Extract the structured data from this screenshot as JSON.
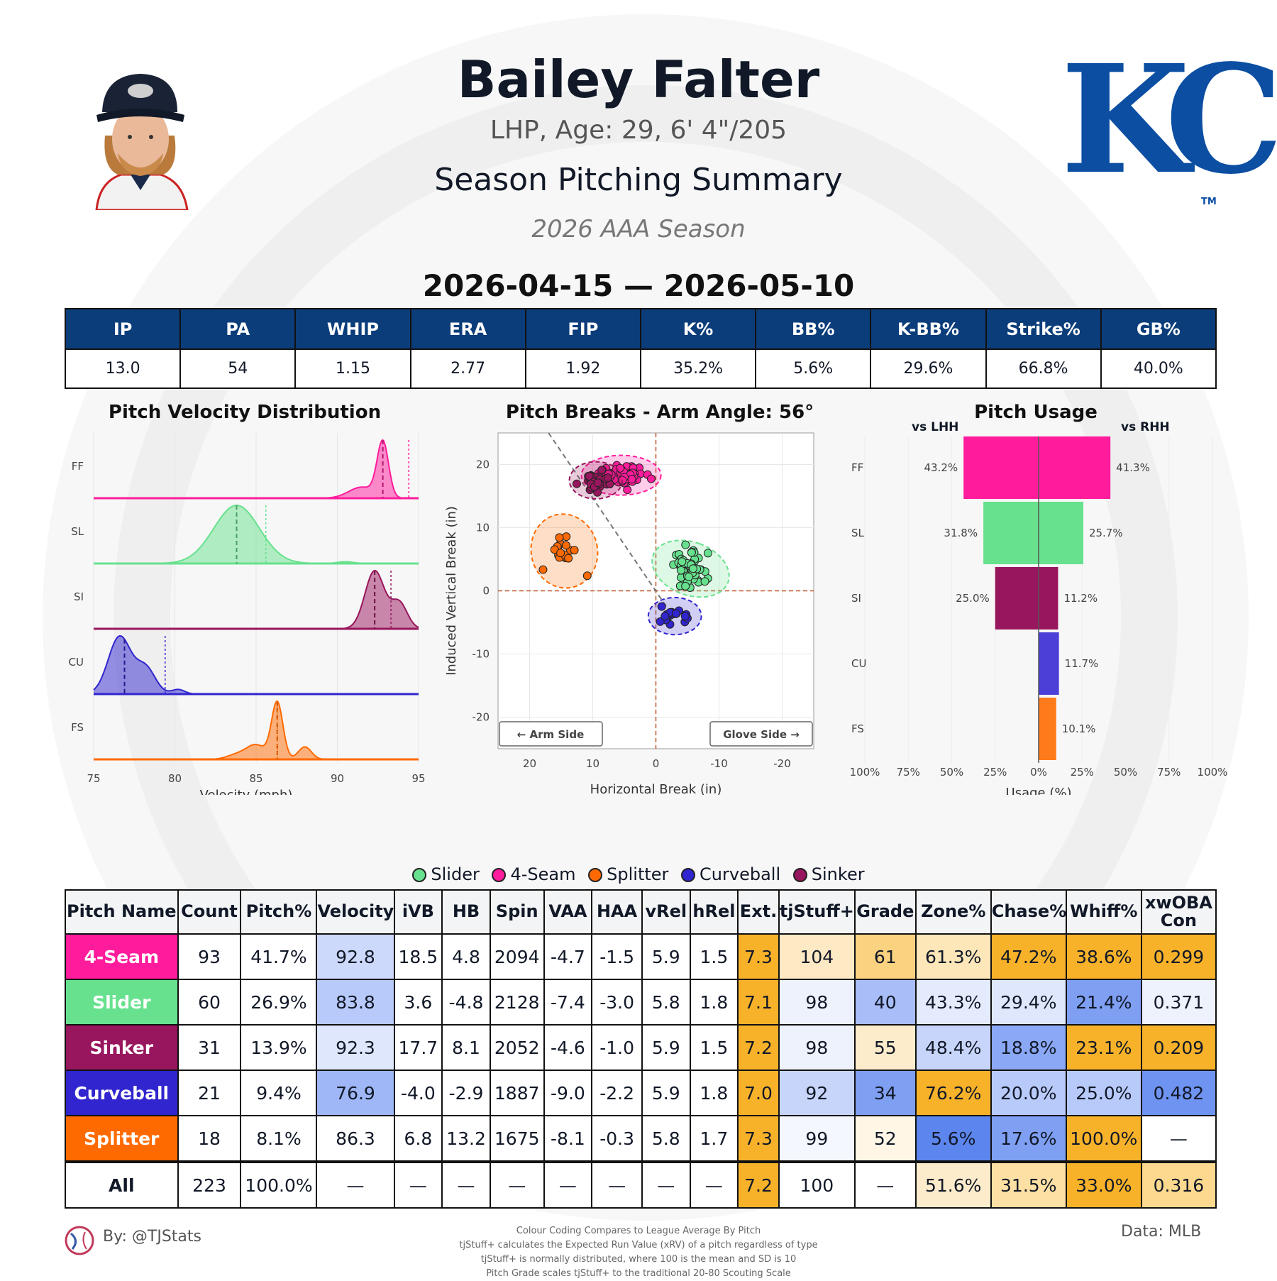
{
  "header": {
    "player_name": "Bailey Falter",
    "bio": "LHP, Age: 29, 6' 4\"/205",
    "summary_title": "Season Pitching Summary",
    "season": "2026 AAA Season",
    "date_range": "2026-04-15 — 2026-05-10",
    "team_logo_text": "KC",
    "team_logo_tm": "TM"
  },
  "colors": {
    "header_bg": "#0b3d7a",
    "ff": "#ff1c9c",
    "sl": "#67e18d",
    "si": "#98165d",
    "cu": "#3025ce",
    "fs": "#ff6a00"
  },
  "stats": {
    "headers": [
      "IP",
      "PA",
      "WHIP",
      "ERA",
      "FIP",
      "K%",
      "BB%",
      "K-BB%",
      "Strike%",
      "GB%"
    ],
    "values": [
      "13.0",
      "54",
      "1.15",
      "2.77",
      "1.92",
      "35.2%",
      "5.6%",
      "29.6%",
      "66.8%",
      "40.0%"
    ]
  },
  "chart_data": [
    {
      "type": "area",
      "title": "Pitch Velocity Distribution",
      "xlabel": "Velocity (mph)",
      "xlim": [
        75,
        95
      ],
      "xticks": [
        "75",
        "80",
        "85",
        "90",
        "95"
      ],
      "series": [
        {
          "name": "FF",
          "color": "#ff1c9c",
          "mean": 92.8,
          "league_mean": 94.4,
          "peaks": [
            [
              92.8,
              0.35,
              1.0
            ],
            [
              91.5,
              0.8,
              0.2
            ]
          ]
        },
        {
          "name": "SL",
          "color": "#67e18d",
          "mean": 83.8,
          "league_mean": 85.6,
          "peaks": [
            [
              83.8,
              1.4,
              1.0
            ],
            [
              90.5,
              0.5,
              0.03
            ]
          ]
        },
        {
          "name": "SI",
          "color": "#98165d",
          "mean": 92.3,
          "league_mean": 93.3,
          "peaks": [
            [
              92.3,
              0.6,
              1.0
            ],
            [
              93.8,
              0.5,
              0.45
            ]
          ]
        },
        {
          "name": "CU",
          "color": "#3025ce",
          "mean": 76.9,
          "league_mean": 79.4,
          "peaks": [
            [
              76.6,
              0.7,
              1.0
            ],
            [
              78.2,
              0.6,
              0.45
            ],
            [
              80.2,
              0.4,
              0.08
            ]
          ]
        },
        {
          "name": "FS",
          "color": "#ff6a00",
          "mean": 86.3,
          "league_mean": 86.3,
          "peaks": [
            [
              86.3,
              0.35,
              1.0
            ],
            [
              85.0,
              0.6,
              0.25
            ],
            [
              88.0,
              0.4,
              0.22
            ],
            [
              83.8,
              0.6,
              0.08
            ]
          ]
        }
      ]
    },
    {
      "type": "scatter",
      "title": "Pitch Breaks - Arm Angle: 56°",
      "xlabel": "Horizontal Break (in)",
      "ylabel": "Induced Vertical Break (in)",
      "xlim": [
        25,
        -25
      ],
      "ylim": [
        -25,
        25
      ],
      "xticks": [
        "20",
        "10",
        "0",
        "-10",
        "-20"
      ],
      "yticks": [
        "20",
        "10",
        "0",
        "-10",
        "-20"
      ],
      "arm_side_label": "← Arm Side",
      "glove_side_label": "Glove Side →",
      "series": [
        {
          "name": "4-Seam",
          "color": "#ff1c9c",
          "center": [
            5.5,
            18.3
          ],
          "spread": [
            3.0,
            1.5
          ],
          "count": 93
        },
        {
          "name": "Sinker",
          "color": "#98165d",
          "center": [
            9.5,
            17.5
          ],
          "spread": [
            2.0,
            1.4
          ],
          "count": 31
        },
        {
          "name": "Splitter",
          "color": "#ff6a00",
          "center": [
            14.5,
            6.3
          ],
          "spread": [
            2.5,
            2.8
          ],
          "count": 18
        },
        {
          "name": "Slider",
          "color": "#67e18d",
          "center": [
            -5.5,
            3.5
          ],
          "spread": [
            2.0,
            3.0
          ],
          "count": 60
        },
        {
          "name": "Curveball",
          "color": "#3025ce",
          "center": [
            -3.0,
            -4.0
          ],
          "spread": [
            2.0,
            1.4
          ],
          "count": 21
        }
      ]
    },
    {
      "type": "bar",
      "title": "Pitch Usage",
      "xlabel": "Usage (%)",
      "left_label": "vs LHH",
      "right_label": "vs RHH",
      "categories": [
        "FF",
        "SL",
        "SI",
        "CU",
        "FS"
      ],
      "xticks": [
        "100%",
        "75%",
        "50%",
        "25%",
        "0%",
        "25%",
        "50%",
        "75%",
        "100%"
      ],
      "series": [
        {
          "name": "vs LHH",
          "values": [
            43.2,
            31.8,
            25.0,
            0,
            0
          ],
          "labels": [
            "43.2%",
            "31.8%",
            "25.0%",
            "",
            ""
          ]
        },
        {
          "name": "vs RHH",
          "values": [
            41.3,
            25.7,
            11.2,
            11.7,
            10.1
          ],
          "labels": [
            "41.3%",
            "25.7%",
            "11.2%",
            "11.7%",
            "10.1%"
          ]
        }
      ],
      "colors": [
        "#ff1c9c",
        "#67e18d",
        "#98165d",
        "#4b3fd8",
        "#ff7a1a"
      ]
    }
  ],
  "legend": [
    {
      "label": "Slider",
      "color": "#67e18d"
    },
    {
      "label": "4-Seam",
      "color": "#ff1c9c"
    },
    {
      "label": "Splitter",
      "color": "#ff6a00"
    },
    {
      "label": "Curveball",
      "color": "#3025ce"
    },
    {
      "label": "Sinker",
      "color": "#98165d"
    }
  ],
  "pitch_table": {
    "headers": [
      "Pitch Name",
      "Count",
      "Pitch%",
      "Velocity",
      "iVB",
      "HB",
      "Spin",
      "VAA",
      "HAA",
      "vRel",
      "hRel",
      "Ext.",
      "tjStuff+",
      "Grade",
      "Zone%",
      "Chase%",
      "Whiff%",
      "xwOBA Con"
    ],
    "rows": [
      {
        "name": "4-Seam",
        "color": "#ff1c9c",
        "cells": [
          "93",
          "41.7%",
          "92.8",
          "18.5",
          "4.8",
          "2094",
          "-4.7",
          "-1.5",
          "5.9",
          "1.5",
          "7.3",
          "104",
          "61",
          "61.3%",
          "47.2%",
          "38.6%",
          "0.299"
        ],
        "bg": [
          "#fff",
          "#fff",
          "#cdd9fb",
          "#fff",
          "#fff",
          "#fff",
          "#fff",
          "#fff",
          "#fff",
          "#fff",
          "#f8b22a",
          "#fde9c3",
          "#fbd27f",
          "#fde6b8",
          "#f8b22a",
          "#f8b22a",
          "#f8b22a"
        ]
      },
      {
        "name": "Slider",
        "color": "#67e18d",
        "cells": [
          "60",
          "26.9%",
          "83.8",
          "3.6",
          "-4.8",
          "2128",
          "-7.4",
          "-3.0",
          "5.8",
          "1.8",
          "7.1",
          "98",
          "40",
          "43.3%",
          "29.4%",
          "21.4%",
          "0.371"
        ],
        "bg": [
          "#fff",
          "#fff",
          "#b8cafa",
          "#fff",
          "#fff",
          "#fff",
          "#fff",
          "#fff",
          "#fff",
          "#fff",
          "#f8b22a",
          "#eef2fd",
          "#a9bef8",
          "#e4ebfd",
          "#dfe7fc",
          "#7f9ff3",
          "#eef2fd"
        ]
      },
      {
        "name": "Sinker",
        "color": "#98165d",
        "cells": [
          "31",
          "13.9%",
          "92.3",
          "17.7",
          "8.1",
          "2052",
          "-4.6",
          "-1.0",
          "5.9",
          "1.5",
          "7.2",
          "98",
          "55",
          "48.4%",
          "18.8%",
          "23.1%",
          "0.209"
        ],
        "bg": [
          "#fff",
          "#fff",
          "#dfe7fc",
          "#fff",
          "#fff",
          "#fff",
          "#fff",
          "#fff",
          "#fff",
          "#fff",
          "#f8b22a",
          "#eef2fd",
          "#fdeccb",
          "#c8d5fa",
          "#8aa8f5",
          "#f8b22a",
          "#f8b22a"
        ]
      },
      {
        "name": "Curveball",
        "color": "#3025ce",
        "cells": [
          "21",
          "9.4%",
          "76.9",
          "-4.0",
          "-2.9",
          "1887",
          "-9.0",
          "-2.2",
          "5.9",
          "1.8",
          "7.0",
          "92",
          "34",
          "76.2%",
          "20.0%",
          "25.0%",
          "0.482"
        ],
        "bg": [
          "#fff",
          "#fff",
          "#9fb7f7",
          "#fff",
          "#fff",
          "#fff",
          "#fff",
          "#fff",
          "#fff",
          "#fff",
          "#f8b22a",
          "#c8d5fa",
          "#7f9ff3",
          "#f8b22a",
          "#b8cafa",
          "#b8cafa",
          "#6f93f0"
        ]
      },
      {
        "name": "Splitter",
        "color": "#ff6a00",
        "cells": [
          "18",
          "8.1%",
          "86.3",
          "6.8",
          "13.2",
          "1675",
          "-8.1",
          "-0.3",
          "5.8",
          "1.7",
          "7.3",
          "99",
          "52",
          "5.6%",
          "17.6%",
          "100.0%",
          "—"
        ],
        "bg": [
          "#fff",
          "#fff",
          "#fff",
          "#fff",
          "#fff",
          "#fff",
          "#fff",
          "#fff",
          "#fff",
          "#fff",
          "#f8b22a",
          "#f4f7fe",
          "#fff6e6",
          "#5d85ee",
          "#7f9ff3",
          "#f8b22a",
          "#fff"
        ]
      }
    ],
    "all_row": {
      "name": "All",
      "cells": [
        "223",
        "100.0%",
        "—",
        "—",
        "—",
        "—",
        "—",
        "—",
        "—",
        "—",
        "7.2",
        "100",
        "—",
        "51.6%",
        "31.5%",
        "33.0%",
        "0.316"
      ],
      "bg": [
        "#fff",
        "#fff",
        "#fff",
        "#fff",
        "#fff",
        "#fff",
        "#fff",
        "#fff",
        "#fff",
        "#fff",
        "#f8b22a",
        "#fff",
        "#fff",
        "#fdeccb",
        "#fde0a3",
        "#f8b22a",
        "#fdd98f"
      ]
    }
  },
  "footer": {
    "by": "By: @TJStats",
    "source": "Data: MLB",
    "notes": [
      "Colour Coding Compares to League Average By Pitch",
      "tjStuff+ calculates the Expected Run Value (xRV) of a pitch regardless of type",
      "tjStuff+ is normally distributed, where 100 is the mean and SD is 10",
      "Pitch Grade scales tjStuff+ to the traditional 20-80 Scouting Scale"
    ]
  }
}
